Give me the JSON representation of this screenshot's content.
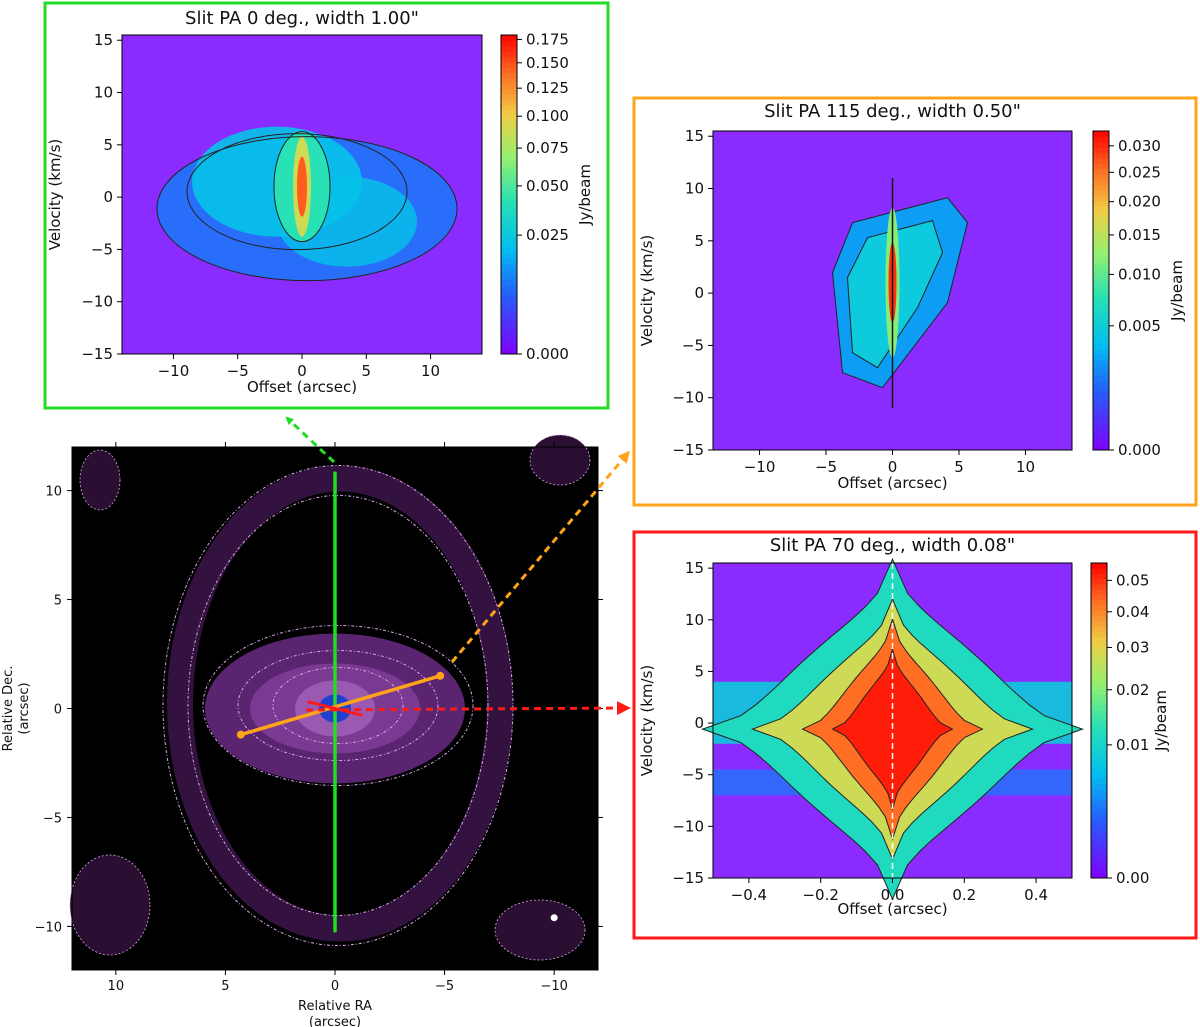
{
  "colors": {
    "pa0": "#22dd22",
    "pa115": "#ffa31a",
    "pa70": "#ff1a1a",
    "map_bg": "#000000",
    "map_contour": "#d8a8e8",
    "cube_bg": "#8a2cff"
  },
  "chart_data": [
    {
      "id": "pa0",
      "type": "heatmap",
      "title": "Slit PA 0 deg., width 1.00\"",
      "xlabel": "Offset (arcsec)",
      "ylabel": "Velocity (km/s)",
      "xlim": [
        -14,
        14
      ],
      "ylim": [
        -15,
        15.5
      ],
      "xticks": [
        -10,
        -5,
        0,
        5,
        10
      ],
      "yticks": [
        -15,
        -10,
        -5,
        0,
        5,
        10,
        15
      ],
      "colorbar": {
        "label": "Jy/beam",
        "scale": "sqrt",
        "max": 0.18,
        "ticks": [
          0.0,
          0.025,
          0.05,
          0.075,
          0.1,
          0.125,
          0.15,
          0.175
        ],
        "tick_labels": [
          "0.000",
          "0.025",
          "0.050",
          "0.075",
          "0.100",
          "0.125",
          "0.150",
          "0.175"
        ]
      },
      "emission": {
        "center_velocity": 1,
        "peak": 0.18
      }
    },
    {
      "id": "pa115",
      "type": "heatmap",
      "title": "Slit PA 115 deg., width 0.50\"",
      "xlabel": "Offset (arcsec)",
      "ylabel": "Velocity (km/s)",
      "xlim": [
        -13.5,
        13.5
      ],
      "ylim": [
        -15,
        15.5
      ],
      "xticks": [
        -10,
        -5,
        0,
        5,
        10
      ],
      "yticks": [
        -15,
        -10,
        -5,
        0,
        5,
        10,
        15
      ],
      "colorbar": {
        "label": "Jy/beam",
        "scale": "sqrt",
        "max": 0.033,
        "ticks": [
          0.0,
          0.005,
          0.01,
          0.015,
          0.02,
          0.025,
          0.03
        ],
        "tick_labels": [
          "0.000",
          "0.005",
          "0.010",
          "0.015",
          "0.020",
          "0.025",
          "0.030"
        ]
      },
      "emission": {
        "center_velocity": 1,
        "peak": 0.033
      }
    },
    {
      "id": "pa70",
      "type": "heatmap",
      "title": "Slit PA 70 deg., width 0.08\"",
      "xlabel": "Offset (arcsec)",
      "ylabel": "Velocity (km/s)",
      "xlim": [
        -0.5,
        0.5
      ],
      "ylim": [
        -15,
        15.5
      ],
      "xticks": [
        -0.4,
        -0.2,
        0.0,
        0.2,
        0.4
      ],
      "yticks": [
        -15,
        -10,
        -5,
        0,
        5,
        10,
        15
      ],
      "colorbar": {
        "label": "Jy/beam",
        "scale": "sqrt",
        "max": 0.056,
        "ticks": [
          0.0,
          0.01,
          0.02,
          0.03,
          0.04,
          0.05
        ],
        "tick_labels": [
          "0.00",
          "0.01",
          "0.02",
          "0.03",
          "0.04",
          "0.05"
        ]
      },
      "emission": {
        "center_velocity": 0,
        "peak": 0.056
      }
    },
    {
      "id": "map",
      "type": "scatter",
      "xlabel": "Relative RA\n(arcsec)",
      "ylabel": "Relative Dec.\n(arcsec)",
      "xlim": [
        12,
        -12
      ],
      "ylim": [
        -12,
        12
      ],
      "xticks": [
        10,
        5,
        0,
        -5,
        -10
      ],
      "yticks": [
        -10,
        -5,
        0,
        5,
        10
      ],
      "slits": [
        {
          "pa": 0,
          "color_key": "pa0",
          "from": [
            0,
            -10.2
          ],
          "to": [
            0,
            10.8
          ]
        },
        {
          "pa": 115,
          "color_key": "pa115",
          "from": [
            4.3,
            -1.2
          ],
          "to": [
            -4.8,
            1.5
          ]
        },
        {
          "pa": 70,
          "color_key": "pa70",
          "from": [
            1.2,
            0.3
          ],
          "to": [
            -1.2,
            -0.3
          ]
        }
      ],
      "beam": [
        -10,
        -9.6
      ]
    }
  ]
}
